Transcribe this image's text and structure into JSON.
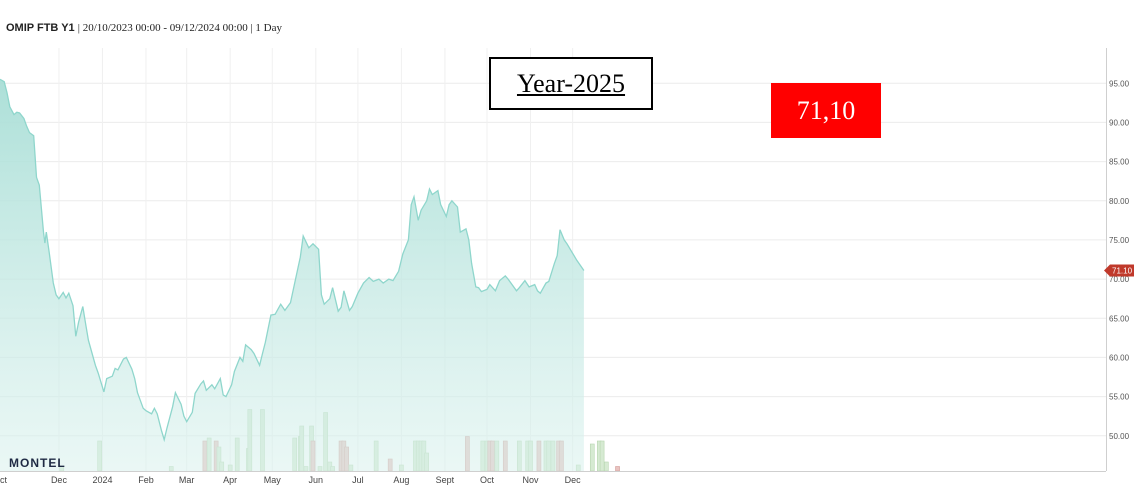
{
  "header": {
    "symbol": "OMIP FTB Y1",
    "range": "20/10/2023 00:00 - 09/12/2024 00:00",
    "interval": "1 Day"
  },
  "annotations": {
    "year_label": "Year-2025",
    "price_label": "71,10"
  },
  "logo": "MONTEL",
  "chart_data": {
    "type": "area",
    "title": "",
    "xlabel": "",
    "ylabel": "",
    "ylim": [
      45.5,
      99.5
    ],
    "y_ticks": [
      "95.00",
      "90.00",
      "85.00",
      "80.00",
      "75.00",
      "70.00",
      "65.00",
      "60.00",
      "55.00",
      "50.00"
    ],
    "x_tick_labels": [
      "ct",
      "Dec",
      "2024",
      "Feb",
      "Mar",
      "Apr",
      "May",
      "Jun",
      "Jul",
      "Aug",
      "Sept",
      "Oct",
      "Nov",
      "Dec"
    ],
    "last_value_tag": "71.10",
    "colors": {
      "area_line": "#8fd6cc",
      "area_fill": "#bfe7e0",
      "volume_up": "#d6ead2",
      "volume_down": "#e9c3c0",
      "tag": "#c0392b"
    },
    "series": [
      {
        "values": [
          [
            "2023-10-20",
            95.5
          ],
          [
            "2023-10-23",
            95.2
          ],
          [
            "2023-10-25",
            93.8
          ],
          [
            "2023-10-27",
            92.0
          ],
          [
            "2023-10-30",
            91.0
          ],
          [
            "2023-11-01",
            91.3
          ],
          [
            "2023-11-03",
            91.2
          ],
          [
            "2023-11-06",
            90.5
          ],
          [
            "2023-11-08",
            89.5
          ],
          [
            "2023-11-10",
            88.7
          ],
          [
            "2023-11-13",
            88.3
          ],
          [
            "2023-11-15",
            83.0
          ],
          [
            "2023-11-17",
            82.0
          ],
          [
            "2023-11-20",
            76.0
          ],
          [
            "2023-11-21",
            74.6
          ],
          [
            "2023-11-22",
            76.0
          ],
          [
            "2023-11-24",
            73.5
          ],
          [
            "2023-11-27",
            69.5
          ],
          [
            "2023-11-29",
            68.0
          ],
          [
            "2023-12-01",
            67.5
          ],
          [
            "2023-12-04",
            68.3
          ],
          [
            "2023-12-06",
            67.6
          ],
          [
            "2023-12-08",
            68.2
          ],
          [
            "2023-12-11",
            66.6
          ],
          [
            "2023-12-13",
            62.7
          ],
          [
            "2023-12-15",
            64.5
          ],
          [
            "2023-12-18",
            66.5
          ],
          [
            "2023-12-20",
            64.3
          ],
          [
            "2023-12-22",
            62.2
          ],
          [
            "2023-12-27",
            59.0
          ],
          [
            "2023-12-29",
            58.0
          ],
          [
            "2024-01-02",
            55.6
          ],
          [
            "2024-01-04",
            57.3
          ],
          [
            "2024-01-08",
            57.6
          ],
          [
            "2024-01-10",
            58.6
          ],
          [
            "2024-01-12",
            58.4
          ],
          [
            "2024-01-16",
            59.8
          ],
          [
            "2024-01-18",
            60.0
          ],
          [
            "2024-01-22",
            58.5
          ],
          [
            "2024-01-24",
            57.3
          ],
          [
            "2024-01-26",
            55.5
          ],
          [
            "2024-01-30",
            53.5
          ],
          [
            "2024-02-01",
            53.2
          ],
          [
            "2024-02-05",
            52.8
          ],
          [
            "2024-02-07",
            53.5
          ],
          [
            "2024-02-09",
            52.8
          ],
          [
            "2024-02-12",
            50.7
          ],
          [
            "2024-02-14",
            49.5
          ],
          [
            "2024-02-16",
            51.0
          ],
          [
            "2024-02-20",
            53.7
          ],
          [
            "2024-02-22",
            55.5
          ],
          [
            "2024-02-26",
            54.0
          ],
          [
            "2024-02-28",
            52.5
          ],
          [
            "2024-03-01",
            51.8
          ],
          [
            "2024-03-05",
            53.0
          ],
          [
            "2024-03-07",
            55.4
          ],
          [
            "2024-03-11",
            56.6
          ],
          [
            "2024-03-13",
            57.0
          ],
          [
            "2024-03-15",
            55.8
          ],
          [
            "2024-03-19",
            56.5
          ],
          [
            "2024-03-21",
            56.0
          ],
          [
            "2024-03-25",
            57.3
          ],
          [
            "2024-03-27",
            55.2
          ],
          [
            "2024-03-29",
            55.0
          ],
          [
            "2024-04-02",
            56.5
          ],
          [
            "2024-04-04",
            58.2
          ],
          [
            "2024-04-08",
            60.0
          ],
          [
            "2024-04-10",
            59.5
          ],
          [
            "2024-04-12",
            61.6
          ],
          [
            "2024-04-16",
            61.0
          ],
          [
            "2024-04-18",
            60.5
          ],
          [
            "2024-04-22",
            59.0
          ],
          [
            "2024-04-24",
            60.5
          ],
          [
            "2024-04-26",
            61.9
          ],
          [
            "2024-04-30",
            65.4
          ],
          [
            "2024-05-03",
            65.5
          ],
          [
            "2024-05-07",
            66.8
          ],
          [
            "2024-05-10",
            66.0
          ],
          [
            "2024-05-14",
            67.0
          ],
          [
            "2024-05-17",
            69.5
          ],
          [
            "2024-05-21",
            72.8
          ],
          [
            "2024-05-23",
            75.5
          ],
          [
            "2024-05-27",
            74.0
          ],
          [
            "2024-05-30",
            74.5
          ],
          [
            "2024-06-03",
            73.8
          ],
          [
            "2024-06-05",
            68.0
          ],
          [
            "2024-06-07",
            66.8
          ],
          [
            "2024-06-11",
            67.5
          ],
          [
            "2024-06-13",
            68.9
          ],
          [
            "2024-06-17",
            65.9
          ],
          [
            "2024-06-19",
            66.4
          ],
          [
            "2024-06-21",
            68.5
          ],
          [
            "2024-06-25",
            66.0
          ],
          [
            "2024-06-27",
            66.5
          ],
          [
            "2024-07-01",
            68.2
          ],
          [
            "2024-07-05",
            69.5
          ],
          [
            "2024-07-09",
            70.2
          ],
          [
            "2024-07-12",
            69.7
          ],
          [
            "2024-07-16",
            70.0
          ],
          [
            "2024-07-19",
            69.5
          ],
          [
            "2024-07-23",
            70.0
          ],
          [
            "2024-07-26",
            69.8
          ],
          [
            "2024-07-30",
            71.0
          ],
          [
            "2024-08-02",
            73.2
          ],
          [
            "2024-08-06",
            75.0
          ],
          [
            "2024-08-08",
            79.5
          ],
          [
            "2024-08-10",
            80.5
          ],
          [
            "2024-08-13",
            77.5
          ],
          [
            "2024-08-15",
            78.8
          ],
          [
            "2024-08-19",
            80.0
          ],
          [
            "2024-08-21",
            81.5
          ],
          [
            "2024-08-23",
            80.8
          ],
          [
            "2024-08-27",
            81.3
          ],
          [
            "2024-08-29",
            79.5
          ],
          [
            "2024-09-02",
            78.0
          ],
          [
            "2024-09-04",
            79.5
          ],
          [
            "2024-09-06",
            80.0
          ],
          [
            "2024-09-10",
            79.2
          ],
          [
            "2024-09-12",
            76.0
          ],
          [
            "2024-09-16",
            76.4
          ],
          [
            "2024-09-18",
            75.0
          ],
          [
            "2024-09-20",
            72.0
          ],
          [
            "2024-09-23",
            69.0
          ],
          [
            "2024-09-25",
            68.9
          ],
          [
            "2024-09-27",
            68.4
          ],
          [
            "2024-10-01",
            68.7
          ],
          [
            "2024-10-03",
            69.3
          ],
          [
            "2024-10-07",
            68.5
          ],
          [
            "2024-10-10",
            69.8
          ],
          [
            "2024-10-14",
            70.4
          ],
          [
            "2024-10-16",
            70.0
          ],
          [
            "2024-10-18",
            69.5
          ],
          [
            "2024-10-22",
            68.5
          ],
          [
            "2024-10-24",
            68.9
          ],
          [
            "2024-10-28",
            69.8
          ],
          [
            "2024-10-31",
            69.0
          ],
          [
            "2024-11-04",
            69.3
          ],
          [
            "2024-11-06",
            68.5
          ],
          [
            "2024-11-08",
            68.2
          ],
          [
            "2024-11-12",
            69.5
          ],
          [
            "2024-11-14",
            69.7
          ],
          [
            "2024-11-18",
            72.0
          ],
          [
            "2024-11-20",
            73.0
          ],
          [
            "2024-11-22",
            76.3
          ],
          [
            "2024-11-25",
            75.0
          ],
          [
            "2024-11-27",
            74.5
          ],
          [
            "2024-12-02",
            73.0
          ],
          [
            "2024-12-04",
            72.4
          ],
          [
            "2024-12-09",
            71.1
          ]
        ]
      }
    ],
    "volume": [
      [
        "2023-12-03",
        1.5,
        "up"
      ],
      [
        "2023-12-30",
        10,
        "up"
      ],
      [
        "2024-02-19",
        1.5,
        "up"
      ],
      [
        "2024-03-14",
        10,
        "down"
      ],
      [
        "2024-03-17",
        11,
        "up"
      ],
      [
        "2024-03-22",
        10,
        "down"
      ],
      [
        "2024-03-24",
        8,
        "up"
      ],
      [
        "2024-03-26",
        3,
        "up"
      ],
      [
        "2024-04-01",
        2,
        "up"
      ],
      [
        "2024-04-06",
        11,
        "up"
      ],
      [
        "2024-04-14",
        7.5,
        "up"
      ],
      [
        "2024-04-15",
        20.5,
        "up"
      ],
      [
        "2024-04-24",
        20.5,
        "up"
      ],
      [
        "2024-05-17",
        11,
        "up"
      ],
      [
        "2024-05-21",
        11.5,
        "up"
      ],
      [
        "2024-05-22",
        15,
        "up"
      ],
      [
        "2024-05-25",
        1.5,
        "up"
      ],
      [
        "2024-05-29",
        15,
        "up"
      ],
      [
        "2024-05-30",
        10,
        "down"
      ],
      [
        "2024-06-04",
        1.5,
        "up"
      ],
      [
        "2024-06-08",
        19.5,
        "up"
      ],
      [
        "2024-06-11",
        3,
        "up"
      ],
      [
        "2024-06-13",
        1.5,
        "up"
      ],
      [
        "2024-06-19",
        10,
        "down"
      ],
      [
        "2024-06-21",
        10,
        "down"
      ],
      [
        "2024-06-23",
        8,
        "down"
      ],
      [
        "2024-06-26",
        2,
        "up"
      ],
      [
        "2024-07-14",
        10,
        "up"
      ],
      [
        "2024-07-24",
        4,
        "down"
      ],
      [
        "2024-08-01",
        2,
        "up"
      ],
      [
        "2024-08-11",
        10,
        "up"
      ],
      [
        "2024-08-13",
        10,
        "up"
      ],
      [
        "2024-08-15",
        10,
        "up"
      ],
      [
        "2024-08-17",
        10,
        "up"
      ],
      [
        "2024-08-19",
        6,
        "up"
      ],
      [
        "2024-09-17",
        11.5,
        "down"
      ],
      [
        "2024-09-28",
        10,
        "up"
      ],
      [
        "2024-10-01",
        10,
        "up"
      ],
      [
        "2024-10-03",
        10,
        "down"
      ],
      [
        "2024-10-05",
        10,
        "down"
      ],
      [
        "2024-10-08",
        10,
        "up"
      ],
      [
        "2024-10-14",
        10,
        "down"
      ],
      [
        "2024-10-24",
        10,
        "up"
      ],
      [
        "2024-10-30",
        10,
        "up"
      ],
      [
        "2024-11-01",
        10,
        "up"
      ],
      [
        "2024-11-07",
        10,
        "down"
      ],
      [
        "2024-11-12",
        10,
        "up"
      ],
      [
        "2024-11-14",
        10,
        "up"
      ],
      [
        "2024-11-17",
        10,
        "up"
      ],
      [
        "2024-11-21",
        10,
        "down"
      ],
      [
        "2024-11-23",
        10,
        "down"
      ],
      [
        "2024-12-05",
        2,
        "up"
      ],
      [
        "2024-12-15",
        9,
        "up"
      ],
      [
        "2024-12-20",
        10,
        "up"
      ],
      [
        "2024-12-22",
        10,
        "up"
      ],
      [
        "2024-12-25",
        3,
        "up"
      ],
      [
        "2025-01-02",
        1.5,
        "down"
      ]
    ]
  }
}
